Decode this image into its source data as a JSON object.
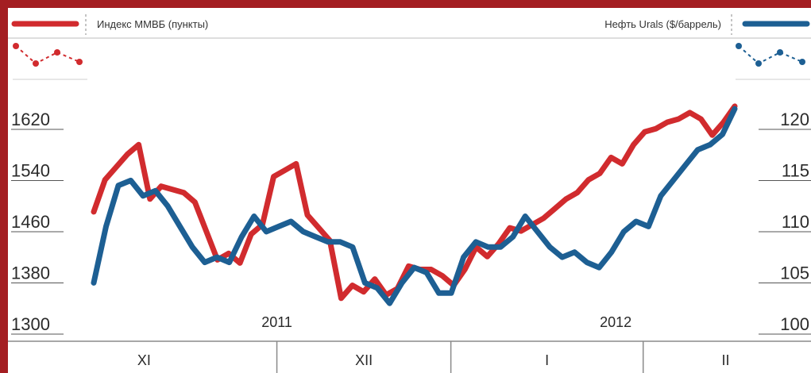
{
  "chart_data": {
    "type": "line",
    "legend": {
      "left_label": "Индекс ММВБ (пункты)",
      "right_label": "Нефть Urals ($/баррель)",
      "left_color": "#d12b2e",
      "right_color": "#1d5f93"
    },
    "y_left": {
      "ticks": [
        "1620",
        "1540",
        "1460",
        "1380",
        "1300"
      ],
      "range": [
        1300,
        1660
      ]
    },
    "y_right": {
      "ticks": [
        "120",
        "115",
        "110",
        "105",
        "100"
      ],
      "range": [
        100,
        123
      ]
    },
    "x_range": [
      0,
      70
    ],
    "years": [
      {
        "label": "2011",
        "x": 20
      },
      {
        "label": "2012",
        "x": 57
      }
    ],
    "months": [
      {
        "label": "XI",
        "start": -9,
        "end": 20
      },
      {
        "label": "XII",
        "start": 20,
        "end": 39
      },
      {
        "label": "I",
        "start": 39,
        "end": 60
      },
      {
        "label": "II",
        "start": 60,
        "end": 78
      }
    ],
    "series": [
      {
        "name": "Индекс ММВБ (пункты)",
        "axis": "left",
        "color": "#d12b2e",
        "values": [
          1475,
          1525,
          1545,
          1565,
          1580,
          1495,
          1515,
          1510,
          1505,
          1490,
          1445,
          1400,
          1410,
          1395,
          1440,
          1455,
          1530,
          1540,
          1550,
          1470,
          1450,
          1430,
          1340,
          1360,
          1350,
          1370,
          1345,
          1355,
          1390,
          1385,
          1385,
          1375,
          1360,
          1385,
          1420,
          1405,
          1425,
          1450,
          1445,
          1455,
          1465,
          1480,
          1495,
          1505,
          1525,
          1535,
          1560,
          1550,
          1580,
          1600,
          1605,
          1615,
          1620,
          1630,
          1620,
          1595,
          1615,
          1640
        ]
      },
      {
        "name": "Нефть Urals ($/баррель)",
        "axis": "right",
        "color": "#1d5f93",
        "values": [
          104.0,
          109.5,
          113.5,
          114.0,
          112.5,
          113.0,
          111.5,
          109.5,
          107.5,
          106.0,
          106.5,
          106.0,
          108.5,
          110.5,
          109.0,
          109.5,
          110.0,
          109.0,
          108.5,
          108.0,
          108.0,
          107.5,
          104.0,
          103.5,
          102.0,
          104.0,
          105.5,
          105.0,
          103.0,
          103.0,
          106.5,
          108.0,
          107.5,
          107.5,
          108.5,
          110.5,
          109.0,
          107.5,
          106.5,
          107.0,
          106.0,
          105.5,
          107.0,
          109.0,
          110.0,
          109.5,
          112.5,
          114.0,
          115.5,
          117.0,
          117.5,
          118.5,
          121.0
        ]
      }
    ]
  }
}
